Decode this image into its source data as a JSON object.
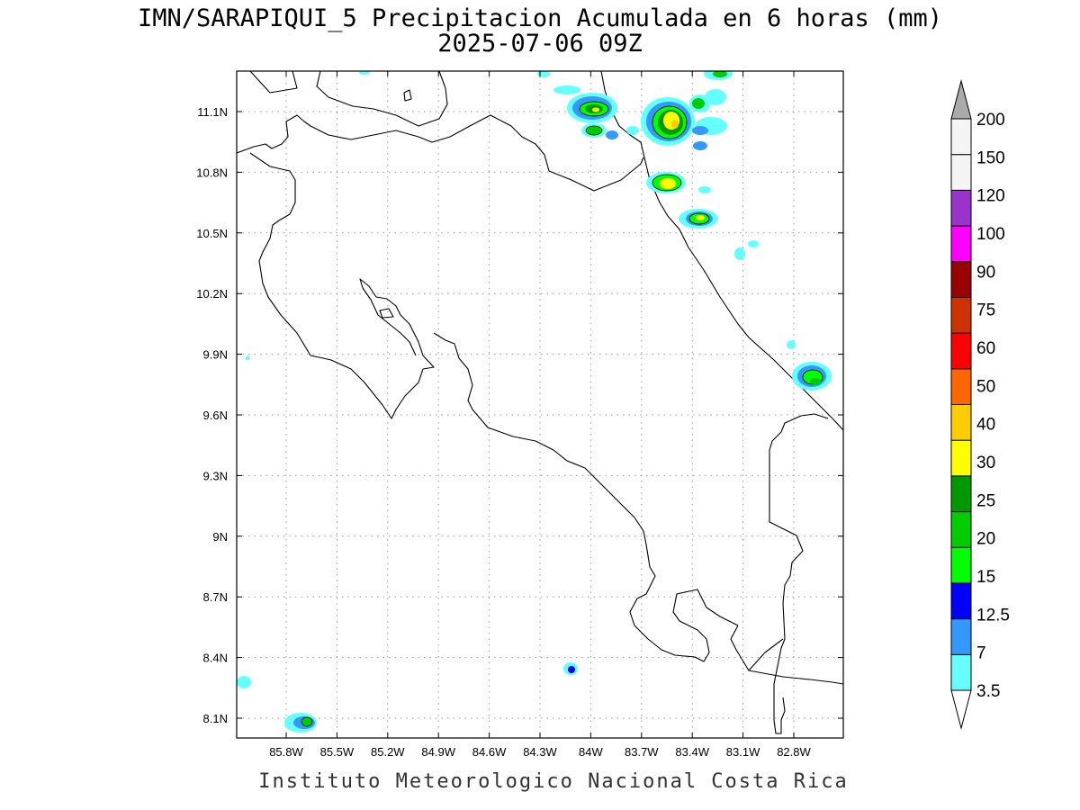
{
  "title_line1": "IMN/SARAPIQUI_5 Precipitacion Acumulada en 6 horas (mm)",
  "title_line2": "2025-07-06 09Z",
  "credit": "Instituto Meteorologico Nacional Costa Rica",
  "map": {
    "lat_ticks": [
      "11.1N",
      "10.8N",
      "10.5N",
      "10.2N",
      "9.9N",
      "9.6N",
      "9.3N",
      "9N",
      "8.7N",
      "8.4N",
      "8.1N"
    ],
    "lon_ticks": [
      "85.8W",
      "85.5W",
      "85.2W",
      "84.9W",
      "84.6W",
      "84.3W",
      "84W",
      "83.7W",
      "83.4W",
      "83.1W",
      "82.8W"
    ],
    "lon_values": [
      -85.8,
      -85.5,
      -85.2,
      -84.9,
      -84.6,
      -84.3,
      -84.0,
      -83.7,
      -83.4,
      -83.1,
      -82.8
    ],
    "lat_values": [
      11.1,
      10.8,
      10.5,
      10.2,
      9.9,
      9.6,
      9.3,
      9.0,
      8.7,
      8.4,
      8.1
    ],
    "grid": "dotted"
  },
  "colorbar": {
    "labels": [
      "3.5",
      "7",
      "12.5",
      "15",
      "20",
      "25",
      "30",
      "40",
      "50",
      "60",
      "75",
      "90",
      "100",
      "120",
      "150",
      "200"
    ],
    "colors": [
      "#66ffff",
      "#3399ff",
      "#0000ff",
      "#00ff00",
      "#00cc00",
      "#009900",
      "#ffff00",
      "#ffcc00",
      "#ff6600",
      "#ff0000",
      "#cc3300",
      "#990000",
      "#ff00ff",
      "#9933cc",
      "#f5f5f5",
      "#aaaaaa"
    ],
    "under_color": "#ffffff",
    "over_color": "#aaaaaa"
  }
}
